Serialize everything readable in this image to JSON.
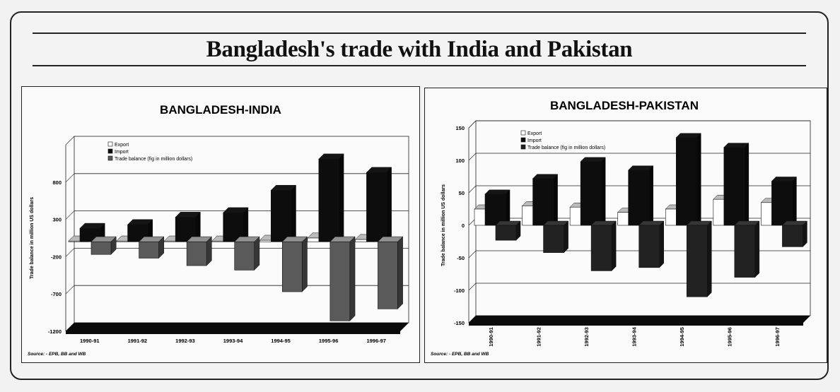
{
  "page": {
    "title": "Bangladesh's trade with India and Pakistan"
  },
  "chart_data": [
    {
      "type": "bar",
      "title": "BANGLADESH-INDIA",
      "ylabel": "Trade balance in million US dollars",
      "xlabel": "",
      "ylim": [
        -1200,
        1300
      ],
      "yticks": [
        "800",
        "300",
        "-200",
        "-700",
        "-1200"
      ],
      "ytick_values": [
        800,
        300,
        -200,
        -700,
        -1200
      ],
      "categories": [
        "1990-91",
        "1991-92",
        "1992-93",
        "1993-94",
        "1994-95",
        "1995-96",
        "1996-97"
      ],
      "legend": [
        "Export",
        "Import",
        "Trade balance (fig in million dollars)"
      ],
      "legend_position": "top-left",
      "series": [
        {
          "name": "Export",
          "values": [
            10,
            10,
            10,
            10,
            20,
            50,
            30
          ],
          "color": "#ffffff"
        },
        {
          "name": "Import",
          "values": [
            180,
            230,
            330,
            390,
            690,
            1110,
            930
          ],
          "color": "#0d0d0d"
        },
        {
          "name": "Trade balance",
          "values": [
            -170,
            -220,
            -320,
            -380,
            -670,
            -1060,
            -900
          ],
          "color": "#5a5a5a"
        }
      ],
      "source": "Source: - EPB, BB and WB",
      "grid": true
    },
    {
      "type": "bar",
      "title": "BANGLADESH-PAKISTAN",
      "ylabel": "Trade balance in million US dollars",
      "xlabel": "",
      "ylim": [
        -150,
        150
      ],
      "yticks": [
        "150",
        "100",
        "50",
        "0",
        "-50",
        "-100",
        "-150"
      ],
      "ytick_values": [
        150,
        100,
        50,
        0,
        -50,
        -100,
        -150
      ],
      "categories": [
        "1990-91",
        "1991-92",
        "1992-93",
        "1993-94",
        "1994-95",
        "1995-96",
        "1996-97"
      ],
      "legend": [
        "Export",
        "Import",
        "Trade balance (fig in million dollars)"
      ],
      "legend_position": "top-left",
      "series": [
        {
          "name": "Export",
          "values": [
            25,
            30,
            28,
            20,
            25,
            40,
            35
          ],
          "color": "#ffffff"
        },
        {
          "name": "Import",
          "values": [
            48,
            72,
            98,
            85,
            135,
            120,
            68
          ],
          "color": "#0d0d0d"
        },
        {
          "name": "Trade balance",
          "values": [
            -23,
            -42,
            -70,
            -65,
            -110,
            -80,
            -33
          ],
          "color": "#222222"
        }
      ],
      "source": "Source: - EPB, BB and WB",
      "grid": true
    }
  ]
}
